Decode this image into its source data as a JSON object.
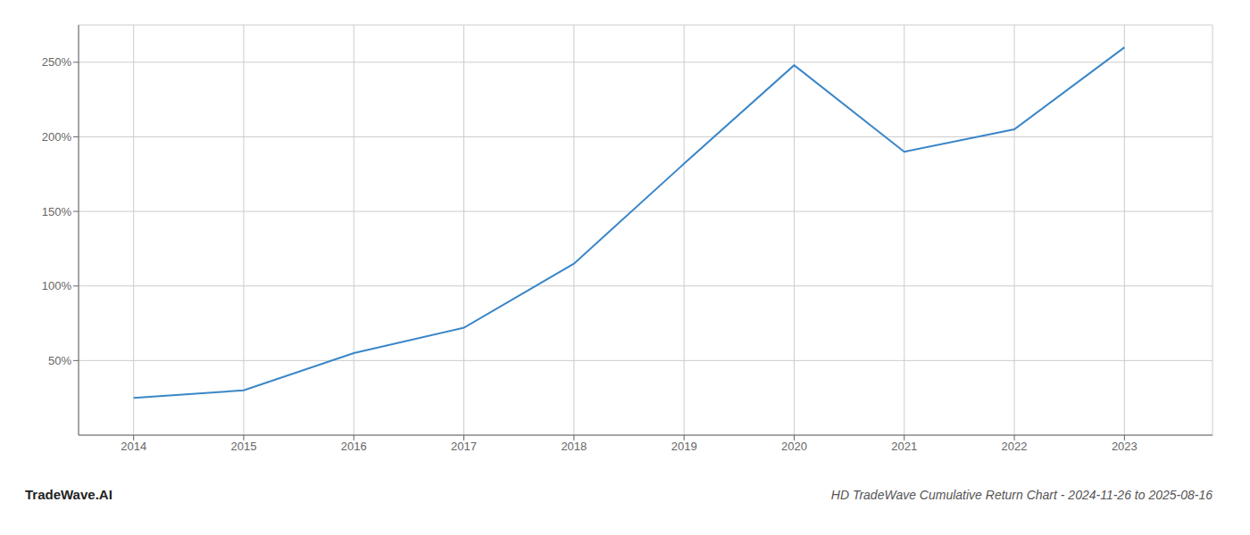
{
  "chart_data": {
    "type": "line",
    "title": "HD TradeWave Cumulative Return Chart - 2024-11-26 to 2025-08-16",
    "annotations": [
      "TradeWave.AI"
    ],
    "x": [
      2014,
      2015,
      2016,
      2017,
      2018,
      2019,
      2020,
      2021,
      2022,
      2023
    ],
    "values": [
      25,
      30,
      55,
      72,
      115,
      182,
      248,
      190,
      205,
      260
    ],
    "color": "#3a86c8",
    "xlim": [
      2013.5,
      2023.8
    ],
    "ylim": [
      0,
      275
    ],
    "xticks": [
      2014,
      2015,
      2016,
      2017,
      2018,
      2019,
      2020,
      2021,
      2022,
      2023
    ],
    "yticks": [
      {
        "value": 50,
        "label": "50%"
      },
      {
        "value": 100,
        "label": "100%"
      },
      {
        "value": 150,
        "label": "150%"
      },
      {
        "value": 200,
        "label": "200%"
      },
      {
        "value": 250,
        "label": "250%"
      }
    ],
    "grid": true
  }
}
